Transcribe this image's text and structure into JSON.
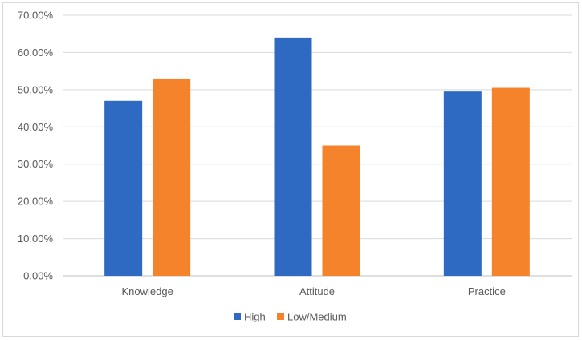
{
  "chart_data": {
    "type": "bar",
    "title": "",
    "xlabel": "",
    "ylabel": "",
    "categories": [
      "Knowledge",
      "Attitude",
      "Practice"
    ],
    "series": [
      {
        "name": "High",
        "color": "#2e6ac1",
        "values": [
          47.0,
          64.0,
          49.5
        ]
      },
      {
        "name": "Low/Medium",
        "color": "#f5832b",
        "values": [
          53.0,
          35.0,
          50.5
        ]
      }
    ],
    "ylim": [
      0,
      70
    ],
    "yticks": [
      0,
      10,
      20,
      30,
      40,
      50,
      60,
      70
    ],
    "ytick_labels": [
      "0.00%",
      "10.00%",
      "20.00%",
      "30.00%",
      "40.00%",
      "50.00%",
      "60.00%",
      "70.00%"
    ],
    "grid": true,
    "legend_position": "bottom"
  }
}
